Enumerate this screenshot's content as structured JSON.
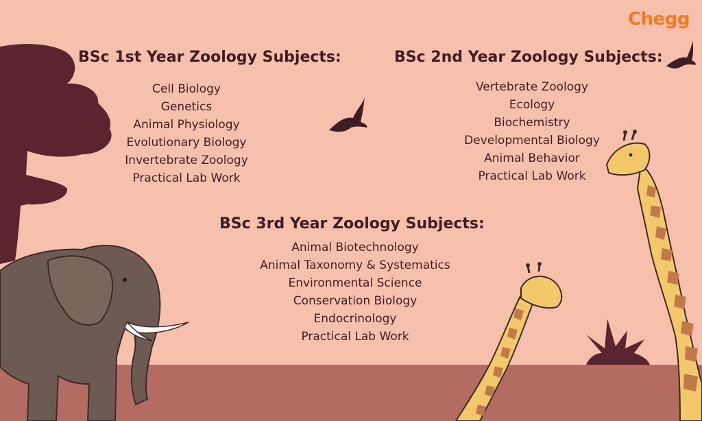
{
  "brand": {
    "name": "Chegg",
    "color": "#f47a20"
  },
  "colors": {
    "sky": "#f7c0ad",
    "ground": "#b46c62",
    "silhouette": "#5b2530",
    "text": "#3e1e24"
  },
  "year1": {
    "title": "BSc 1st Year Zoology Subjects:",
    "subjects": [
      "Cell Biology",
      "Genetics",
      "Animal Physiology",
      "Evolutionary Biology",
      "Invertebrate Zoology",
      "Practical Lab Work"
    ]
  },
  "year2": {
    "title": "BSc 2nd Year Zoology Subjects:",
    "subjects": [
      "Vertebrate Zoology",
      "Ecology",
      "Biochemistry",
      "Developmental Biology",
      "Animal Behavior",
      "Practical Lab Work"
    ]
  },
  "year3": {
    "title": "BSc 3rd Year Zoology Subjects:",
    "subjects": [
      "Animal Biotechnology",
      "Animal Taxonomy & Systematics",
      "Environmental Science",
      "Conservation Biology",
      "Endocrinology",
      "Practical Lab Work"
    ]
  },
  "illustrations": [
    "tree-silhouette",
    "elephant",
    "giraffe-large",
    "giraffe-small",
    "bird",
    "bird",
    "shrub"
  ]
}
